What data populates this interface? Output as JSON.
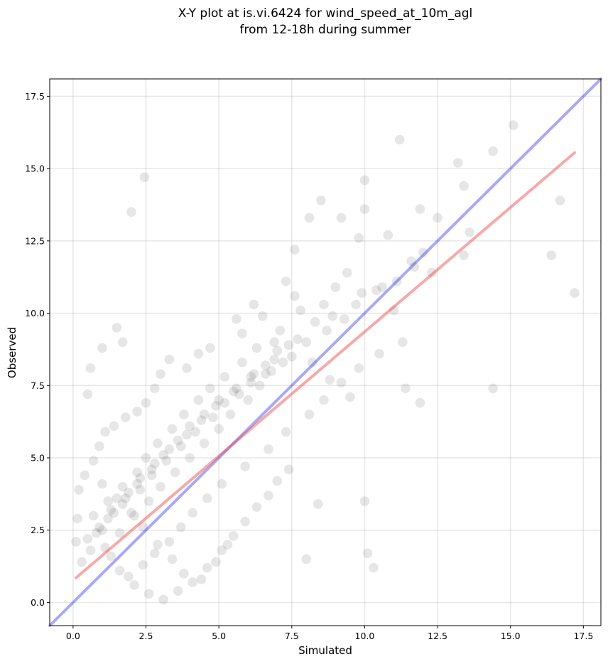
{
  "chart_data": {
    "type": "scatter",
    "title_lines": [
      "X-Y plot at is.vi.6424 for wind_speed_at_10m_agl",
      "from 12-18h during summer"
    ],
    "xlabel": "Simulated",
    "ylabel": "Observed",
    "xlim": [
      -0.8,
      18.1
    ],
    "ylim": [
      -0.8,
      18.1
    ],
    "x_ticks": [
      0.0,
      2.5,
      5.0,
      7.5,
      10.0,
      12.5,
      15.0,
      17.5
    ],
    "x_tick_labels": [
      "0.0",
      "2.5",
      "5.0",
      "7.5",
      "10.0",
      "12.5",
      "15.0",
      "17.5"
    ],
    "y_ticks": [
      0.0,
      2.5,
      5.0,
      7.5,
      10.0,
      12.5,
      15.0,
      17.5
    ],
    "y_tick_labels": [
      "0.0",
      "2.5",
      "5.0",
      "7.5",
      "10.0",
      "12.5",
      "15.0",
      "17.5"
    ],
    "grid": true,
    "point_color": "#333333",
    "point_alpha": 0.12,
    "series": [
      {
        "kind": "points",
        "x": [
          2.0,
          2.45,
          11.2,
          15.1,
          14.4,
          13.2,
          13.4,
          11.9,
          10.0,
          8.5,
          8.1,
          10.0,
          9.8,
          7.6,
          9.2,
          1.5,
          1.7,
          0.6,
          0.5,
          1.0,
          16.7,
          16.4,
          17.2,
          14.4,
          11.9,
          11.4,
          10.1,
          10.3,
          10.0,
          8.4,
          8.0,
          13.6,
          13.4,
          12.5,
          12.3,
          11.6,
          11.0,
          10.8,
          10.6,
          9.9,
          9.4,
          9.0,
          8.9,
          8.6,
          8.3,
          7.3,
          7.6,
          7.8,
          6.2,
          6.5,
          7.1,
          6.9,
          5.6,
          5.8,
          4.7,
          4.3,
          3.9,
          3.3,
          3.0,
          2.8,
          2.5,
          2.2,
          1.8,
          1.4,
          1.1,
          0.9,
          0.7,
          0.4,
          0.2,
          0.15,
          0.1,
          1.3,
          1.6,
          2.1,
          2.6,
          3.1,
          3.6,
          4.1,
          4.6,
          5.1,
          5.5,
          5.9,
          6.3,
          6.7,
          7.0,
          7.4,
          1.0,
          1.5,
          2.0,
          2.4,
          2.9,
          3.4,
          3.8,
          4.4,
          4.9,
          5.3,
          0.8,
          1.2,
          1.7,
          2.3,
          2.7,
          3.2,
          3.7,
          4.2,
          4.8,
          5.2,
          5.7,
          6.1,
          6.6,
          7.2,
          1.1,
          1.6,
          2.1,
          2.6,
          3.0,
          3.5,
          4.0,
          4.5,
          5.0,
          5.4,
          6.0,
          6.4,
          6.8,
          7.5,
          8.0,
          8.7,
          9.3,
          9.7,
          10.4,
          11.1,
          11.7,
          12.0,
          0.5,
          0.9,
          1.3,
          1.9,
          2.3,
          2.8,
          3.3,
          3.9,
          4.4,
          4.9,
          5.5,
          6.1,
          6.6,
          7.0,
          7.7,
          8.2,
          8.8,
          9.5,
          0.3,
          0.6,
          1.0,
          1.4,
          1.8,
          2.2,
          2.7,
          3.1,
          3.6,
          4.0,
          4.5,
          5.0,
          5.6,
          6.2,
          6.9,
          7.4,
          0.7,
          1.2,
          1.7,
          2.2,
          2.5,
          2.9,
          3.4,
          3.8,
          4.3,
          4.7,
          5.2,
          5.8,
          6.3,
          1.9,
          2.4,
          2.8,
          3.3,
          3.7,
          4.1,
          4.6,
          5.1,
          5.9,
          6.7,
          7.3,
          8.1,
          8.6,
          9.2,
          9.8,
          10.5,
          11.3
        ],
        "y": [
          13.5,
          14.7,
          16.0,
          16.5,
          15.6,
          15.2,
          14.4,
          13.6,
          14.6,
          13.9,
          13.3,
          13.6,
          12.6,
          12.2,
          13.3,
          9.5,
          9.0,
          8.1,
          7.2,
          8.8,
          13.9,
          12.0,
          10.7,
          7.4,
          6.9,
          7.4,
          1.7,
          1.2,
          3.5,
          3.4,
          1.5,
          12.8,
          12.0,
          13.3,
          11.4,
          11.8,
          10.1,
          12.7,
          10.9,
          10.7,
          11.4,
          10.9,
          9.9,
          10.3,
          9.7,
          11.1,
          10.6,
          10.1,
          10.3,
          9.9,
          9.4,
          9.0,
          9.8,
          9.3,
          8.8,
          8.6,
          8.1,
          8.4,
          7.9,
          7.4,
          6.9,
          6.6,
          6.4,
          6.1,
          5.9,
          5.4,
          4.9,
          4.4,
          3.9,
          2.9,
          2.1,
          1.6,
          1.1,
          0.6,
          0.3,
          0.1,
          0.4,
          0.7,
          1.2,
          1.8,
          2.3,
          2.8,
          3.3,
          3.7,
          4.2,
          4.6,
          4.1,
          3.6,
          3.1,
          2.6,
          2.0,
          1.5,
          1.0,
          0.8,
          1.4,
          2.0,
          2.4,
          2.9,
          3.4,
          3.9,
          4.4,
          4.9,
          5.4,
          5.9,
          6.4,
          6.9,
          7.2,
          7.6,
          7.9,
          8.3,
          1.9,
          2.4,
          3.0,
          3.5,
          4.0,
          4.5,
          5.0,
          5.5,
          6.0,
          6.5,
          7.0,
          7.5,
          8.0,
          8.5,
          9.0,
          9.4,
          9.8,
          10.3,
          10.8,
          11.1,
          11.6,
          12.1,
          2.2,
          2.6,
          3.2,
          3.8,
          4.3,
          4.8,
          5.3,
          5.8,
          6.3,
          6.8,
          7.3,
          7.8,
          8.2,
          8.7,
          9.1,
          8.3,
          7.7,
          7.1,
          1.4,
          1.8,
          2.5,
          3.1,
          3.6,
          4.1,
          4.6,
          5.1,
          5.6,
          6.1,
          6.5,
          7.0,
          7.4,
          7.9,
          8.4,
          8.9,
          3.0,
          3.5,
          4.0,
          4.5,
          5.0,
          5.5,
          6.0,
          6.5,
          7.0,
          7.4,
          7.8,
          8.3,
          8.8,
          0.9,
          1.3,
          1.7,
          2.1,
          2.6,
          3.1,
          3.6,
          4.1,
          4.7,
          5.3,
          5.9,
          6.5,
          7.0,
          7.6,
          8.1,
          8.6,
          9.0
        ]
      },
      {
        "kind": "line",
        "x": [
          -0.8,
          18.1
        ],
        "y": [
          -0.8,
          18.1
        ],
        "color": "#4040ee",
        "alpha": 0.45
      },
      {
        "kind": "line",
        "x": [
          0.1,
          17.2
        ],
        "y": [
          0.85,
          15.55
        ],
        "color": "#ee4040",
        "alpha": 0.45
      }
    ]
  }
}
